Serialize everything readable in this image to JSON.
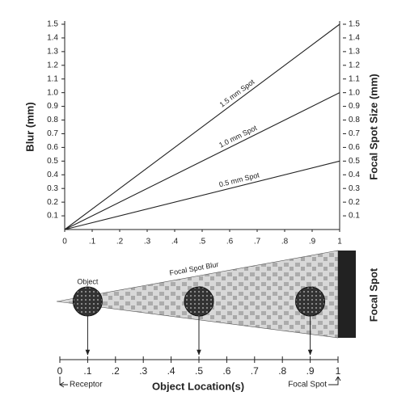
{
  "chart_data": [
    {
      "type": "line",
      "ylabel": "Blur (mm)",
      "y2label": "Focal Spot Size (mm)",
      "x": [
        0,
        1
      ],
      "series": [
        {
          "name": "1.5 mm Spot",
          "color": "#222222",
          "values": [
            0,
            1.5
          ]
        },
        {
          "name": "1.0 mm Spot",
          "color": "#222222",
          "values": [
            0,
            1.0
          ]
        },
        {
          "name": "0.5 mm Spot",
          "color": "#222222",
          "values": [
            0,
            0.5
          ]
        }
      ],
      "xlim": [
        0,
        1
      ],
      "xticks": [
        0,
        {
          "value": 0.1,
          "label": ".1"
        },
        {
          "value": 0.2,
          "label": ".2"
        },
        {
          "value": 0.3,
          "label": ".3"
        },
        {
          "value": 0.4,
          "label": ".4"
        },
        {
          "value": 0.5,
          "label": ".5"
        },
        {
          "value": 0.6,
          "label": ".6"
        },
        {
          "value": 0.7,
          "label": ".7"
        },
        {
          "value": 0.8,
          "label": ".8"
        },
        {
          "value": 0.9,
          "label": ".9"
        },
        1
      ],
      "ylim": [
        0,
        1.5
      ],
      "yticks": [
        0.1,
        0.2,
        0.3,
        0.4,
        0.5,
        0.6,
        0.7,
        0.8,
        0.9,
        {
          "value": 1,
          "label": "1.0"
        },
        1.1,
        1.2,
        1.3,
        1.4,
        1.5
      ],
      "y2lim": [
        0,
        1.5
      ],
      "y2ticks": [
        0.1,
        0.2,
        0.3,
        0.4,
        0.5,
        0.6,
        0.7,
        0.8,
        0.9,
        {
          "value": 1,
          "label": "1.0"
        },
        1.1,
        1.2,
        1.3,
        1.4,
        1.5
      ]
    },
    {
      "type": "schematic",
      "object_label": "Object",
      "blur_label": "Focal Spot Blur",
      "source_label": "Focal Spot",
      "x": [
        0.1,
        0.5,
        0.9
      ],
      "xlabel": "Object Location(s)",
      "left_note": "Receptor",
      "right_note": "Focal Spot",
      "xlim": [
        0,
        1
      ],
      "xticks": [
        0,
        {
          "value": 0.1,
          "label": ".1"
        },
        {
          "value": 0.2,
          "label": ".2"
        },
        {
          "value": 0.3,
          "label": ".3"
        },
        {
          "value": 0.4,
          "label": ".4"
        },
        {
          "value": 0.5,
          "label": ".5"
        },
        {
          "value": 0.6,
          "label": ".6"
        },
        {
          "value": 0.7,
          "label": ".7"
        },
        {
          "value": 0.8,
          "label": ".8"
        },
        {
          "value": 0.9,
          "label": ".9"
        },
        1
      ]
    }
  ]
}
